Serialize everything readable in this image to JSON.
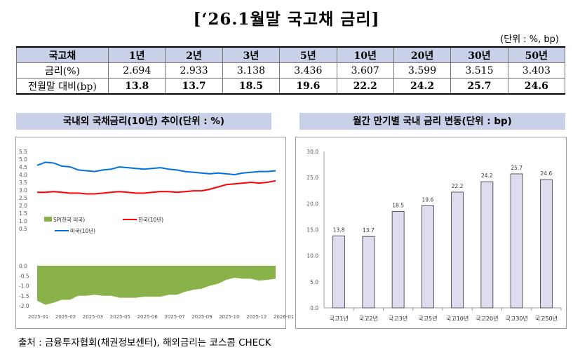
{
  "title": "[‘26.1월말 국고채 금리]",
  "unit_note": "(단위 : %, bp)",
  "table": {
    "headers": [
      "국고채",
      "1년",
      "2년",
      "3년",
      "5년",
      "10년",
      "20년",
      "30년",
      "50년"
    ],
    "rows": [
      {
        "label": "금리(%)",
        "values": [
          "2.694",
          "2.933",
          "3.138",
          "3.436",
          "3.607",
          "3.599",
          "3.515",
          "3.403"
        ]
      },
      {
        "label": "전월말 대비(bp)",
        "values": [
          "13.8",
          "13.7",
          "18.5",
          "19.6",
          "22.2",
          "24.2",
          "25.7",
          "24.6"
        ]
      }
    ]
  },
  "left_chart_title": "국내외 국채금리(10년) 추이(단위 : %)",
  "right_chart_title": "월간 만기별 국내 금리 변동(단위 : bp)",
  "source_note": "출처 : 금융투자협회(채권정보센터), 해외금리는 코스콤 CHECK",
  "chart_data": [
    {
      "type": "line",
      "x_ticks": [
        "2025-01",
        "2025-02",
        "2025-03",
        "2025-05",
        "2025-06",
        "2025-07",
        "2025-09",
        "2025-10",
        "2025-12",
        "2026-01"
      ],
      "y_ticks_top": [
        "5.5",
        "5.0",
        "4.5",
        "4.0",
        "3.5",
        "3.0",
        "2.5",
        "2.0",
        "1.5",
        "1.0",
        "0.5"
      ],
      "y_ticks_bottom": [
        "0.0",
        "-0.5",
        "-1.0",
        "-1.5",
        "-2.0"
      ],
      "ylim_top": [
        0.5,
        5.5
      ],
      "ylim_bottom": [
        -2.0,
        0.0
      ],
      "legend": {
        "spread": "SP(한국 미국)",
        "korea": "한국(10년)",
        "us": "미국(10년)"
      },
      "colors": {
        "korea": "#ff0000",
        "us": "#0070e0",
        "spread": "#8ab24a"
      },
      "series": [
        {
          "name": "미국(10년)",
          "values": [
            4.6,
            4.8,
            4.75,
            4.55,
            4.5,
            4.3,
            4.25,
            4.2,
            4.3,
            4.35,
            4.5,
            4.45,
            4.4,
            4.35,
            4.4,
            4.45,
            4.35,
            4.3,
            4.2,
            4.15,
            4.1,
            4.05,
            4.1,
            4.05,
            4.0,
            4.1,
            4.15,
            4.2,
            4.2,
            4.25
          ]
        },
        {
          "name": "한국(10년)",
          "values": [
            2.85,
            2.85,
            2.9,
            2.85,
            2.8,
            2.8,
            2.75,
            2.75,
            2.8,
            2.85,
            2.9,
            2.85,
            2.8,
            2.8,
            2.85,
            2.9,
            2.9,
            2.85,
            2.9,
            2.95,
            2.95,
            3.05,
            3.2,
            3.35,
            3.4,
            3.45,
            3.5,
            3.45,
            3.5,
            3.6
          ]
        },
        {
          "name": "SP(한국 미국)",
          "values": [
            -1.75,
            -1.95,
            -1.85,
            -1.7,
            -1.7,
            -1.5,
            -1.5,
            -1.45,
            -1.5,
            -1.5,
            -1.6,
            -1.6,
            -1.6,
            -1.55,
            -1.55,
            -1.55,
            -1.45,
            -1.45,
            -1.3,
            -1.2,
            -1.15,
            -1.0,
            -0.9,
            -0.7,
            -0.6,
            -0.65,
            -0.65,
            -0.75,
            -0.7,
            -0.65
          ]
        }
      ]
    },
    {
      "type": "bar",
      "categories": [
        "국고1년",
        "국고2년",
        "국고3년",
        "국고5년",
        "국고10년",
        "국고20년",
        "국고30년",
        "국고50년"
      ],
      "values": [
        13.8,
        13.7,
        18.5,
        19.6,
        22.2,
        24.2,
        25.7,
        24.6
      ],
      "value_labels": [
        "13.8",
        "13.7",
        "18.5",
        "19.6",
        "22.2",
        "24.2",
        "25.7",
        "24.6"
      ],
      "y_ticks": [
        "0.0",
        "5.0",
        "10.0",
        "15.0",
        "20.0",
        "25.0",
        "30.0"
      ],
      "ylim": [
        0,
        30
      ],
      "bar_color": "#e0dcf0"
    }
  ]
}
